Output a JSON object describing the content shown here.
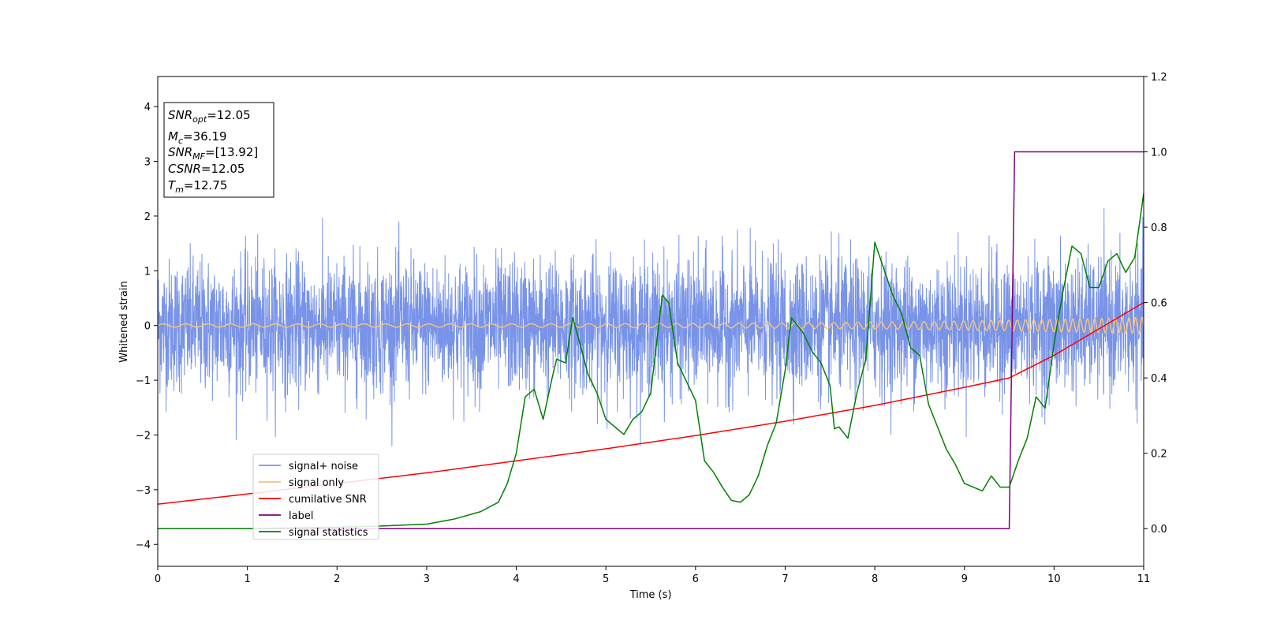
{
  "chart_data": {
    "type": "line",
    "title": "",
    "xlabel": "Time (s)",
    "ylabel": "Whitened strain",
    "xlim": [
      0,
      11
    ],
    "ylim": [
      -4.4,
      4.55
    ],
    "y2lim": [
      -0.1,
      1.2
    ],
    "x_ticks": [
      0,
      1,
      2,
      3,
      4,
      5,
      6,
      7,
      8,
      9,
      10,
      11
    ],
    "x_tick_labels": [
      "0",
      "1",
      "2",
      "3",
      "4",
      "5",
      "6",
      "7",
      "8",
      "9",
      "10",
      "11"
    ],
    "y_ticks": [
      -4,
      -3,
      -2,
      -1,
      0,
      1,
      2,
      3,
      4
    ],
    "y_tick_labels": [
      "−4",
      "−3",
      "−2",
      "−1",
      "0",
      "1",
      "2",
      "3",
      "4"
    ],
    "y2_ticks": [
      0.0,
      0.2,
      0.4,
      0.6,
      0.8,
      1.0,
      1.2
    ],
    "y2_tick_labels": [
      "0.0",
      "0.2",
      "0.4",
      "0.6",
      "0.8",
      "1.0",
      "1.2"
    ],
    "grid": false,
    "legend_position": "lower-left",
    "annotation_box": {
      "lines": [
        {
          "base": "SNR",
          "sub": "opt",
          "value": "=12.05"
        },
        {
          "base": "M",
          "sub": "c",
          "value": "=36.19"
        },
        {
          "base": "SNR",
          "sub": "MF",
          "value": "=[13.92]"
        },
        {
          "base": "CSNR",
          "sub": "",
          "value": "=12.05"
        },
        {
          "base": "T",
          "sub": "m",
          "value": "=12.75"
        }
      ]
    },
    "series": [
      {
        "name": "signal+ noise",
        "color": "#7893e8",
        "axis": "left",
        "sample_rate_hz": 400,
        "noise_std": 0.6,
        "peak_range": [
          -2.2,
          2.4
        ]
      },
      {
        "name": "signal only",
        "color": "#f5c27a",
        "axis": "left",
        "amplitude_range": [
          0.03,
          0.15
        ],
        "frequency_hz_range": [
          4,
          14
        ]
      },
      {
        "name": "cumilative SNR",
        "color": "#ff0000",
        "axis": "right",
        "x": [
          0,
          1,
          2,
          3,
          4,
          5,
          6,
          7,
          8,
          9,
          9.5,
          10,
          10.5,
          11
        ],
        "y": [
          0.065,
          0.092,
          0.12,
          0.148,
          0.18,
          0.212,
          0.247,
          0.285,
          0.327,
          0.375,
          0.4,
          0.46,
          0.53,
          0.6
        ]
      },
      {
        "name": "label",
        "color": "#800080",
        "axis": "right",
        "x": [
          0,
          9.5,
          9.56,
          11
        ],
        "y": [
          0,
          0,
          1,
          1
        ]
      },
      {
        "name": "signal statistics",
        "color": "#008000",
        "axis": "right",
        "x": [
          0,
          0.5,
          1,
          1.5,
          2,
          2.5,
          3,
          3.3,
          3.6,
          3.8,
          3.9,
          4.0,
          4.1,
          4.2,
          4.3,
          4.4,
          4.45,
          4.55,
          4.63,
          4.7,
          4.8,
          4.9,
          5.0,
          5.1,
          5.2,
          5.3,
          5.4,
          5.5,
          5.63,
          5.7,
          5.8,
          5.9,
          6.0,
          6.1,
          6.2,
          6.3,
          6.4,
          6.5,
          6.6,
          6.7,
          6.8,
          6.9,
          7.0,
          7.07,
          7.2,
          7.3,
          7.4,
          7.5,
          7.55,
          7.6,
          7.7,
          7.8,
          7.9,
          8.0,
          8.1,
          8.2,
          8.3,
          8.4,
          8.5,
          8.6,
          8.7,
          8.8,
          8.9,
          9.0,
          9.1,
          9.2,
          9.3,
          9.4,
          9.5,
          9.6,
          9.7,
          9.8,
          9.9,
          10.0,
          10.1,
          10.2,
          10.3,
          10.4,
          10.5,
          10.6,
          10.7,
          10.8,
          10.9,
          11.0
        ],
        "y": [
          0.0,
          0.0,
          0.0,
          0.002,
          0.004,
          0.007,
          0.012,
          0.025,
          0.045,
          0.07,
          0.12,
          0.2,
          0.35,
          0.37,
          0.29,
          0.4,
          0.45,
          0.44,
          0.56,
          0.5,
          0.41,
          0.36,
          0.29,
          0.27,
          0.25,
          0.29,
          0.31,
          0.36,
          0.62,
          0.6,
          0.44,
          0.39,
          0.34,
          0.18,
          0.15,
          0.11,
          0.075,
          0.07,
          0.09,
          0.14,
          0.22,
          0.28,
          0.42,
          0.56,
          0.52,
          0.47,
          0.44,
          0.38,
          0.265,
          0.27,
          0.24,
          0.36,
          0.45,
          0.76,
          0.69,
          0.62,
          0.57,
          0.48,
          0.46,
          0.33,
          0.27,
          0.21,
          0.17,
          0.12,
          0.11,
          0.1,
          0.14,
          0.11,
          0.11,
          0.18,
          0.24,
          0.35,
          0.32,
          0.49,
          0.63,
          0.75,
          0.73,
          0.64,
          0.64,
          0.71,
          0.73,
          0.68,
          0.72,
          0.89
        ]
      }
    ]
  }
}
